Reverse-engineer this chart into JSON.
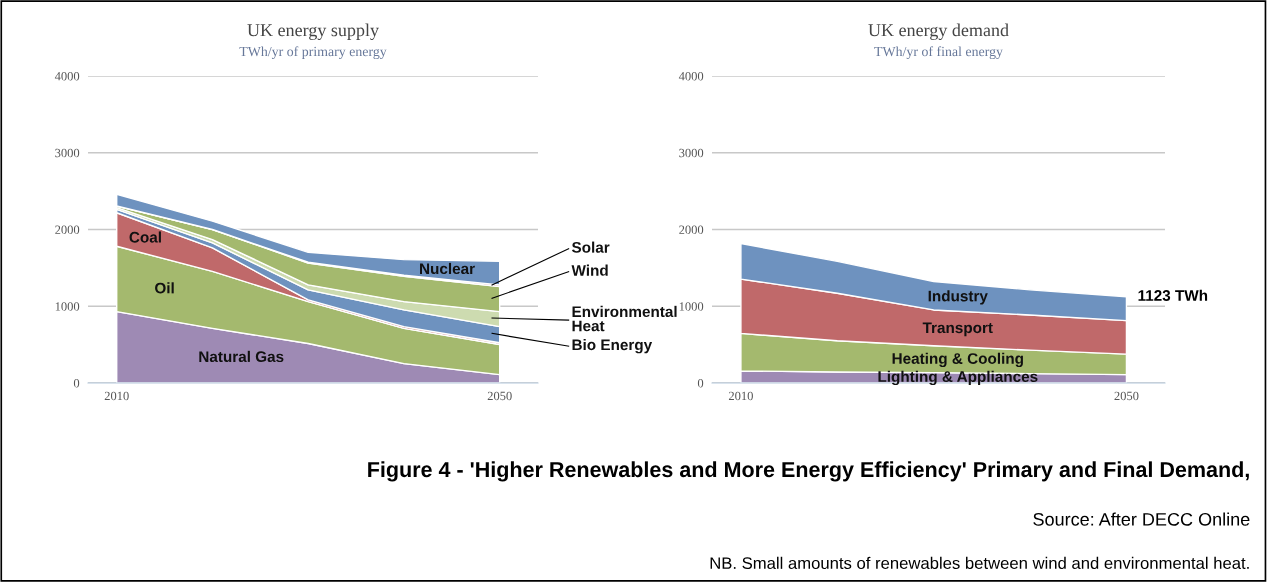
{
  "chart_data": [
    {
      "type": "area",
      "stacked": true,
      "title": "UK energy supply",
      "subtitle": "TWh/yr of primary energy",
      "x": [
        2010,
        2020,
        2030,
        2040,
        2050
      ],
      "xlim": [
        2007,
        2054
      ],
      "xticks": [
        2010,
        2050
      ],
      "ylim": [
        0,
        4000
      ],
      "yticks": [
        0,
        1000,
        2000,
        3000,
        4000
      ],
      "grid": "y",
      "legend": false,
      "series": [
        {
          "name": "Natural Gas",
          "color": "#9e8ab4",
          "values": [
            930,
            712,
            515,
            253,
            109
          ]
        },
        {
          "name": "Oil",
          "color": "#a4b96e",
          "values": [
            852,
            742,
            546,
            459,
            393
          ]
        },
        {
          "name": "Coal",
          "color": "#c0696a",
          "values": [
            436,
            306,
            22,
            22,
            22
          ]
        },
        {
          "name": "Bio Energy",
          "color": "#6e92bf",
          "values": [
            44,
            65,
            131,
            218,
            210
          ]
        },
        {
          "name": "Environmental Heat",
          "color": "#cddbb0",
          "values": [
            22,
            44,
            65,
            109,
            196
          ]
        },
        {
          "name": "Wind",
          "color": "#a4b96e",
          "values": [
            22,
            131,
            284,
            328,
            328
          ]
        },
        {
          "name": "Solar",
          "color": "#c0696a",
          "values": [
            0,
            0,
            10,
            15,
            20
          ]
        },
        {
          "name": "Nuclear",
          "color": "#6e92bf",
          "values": [
            153,
            109,
            130,
            203,
            307
          ]
        }
      ],
      "annotations": [
        "Figure 4 - 'Higher Renewables and More Energy Efficiency' Primary and Final Demand,",
        "Source: After DECC Online",
        "NB. Small amounts of renewables between wind and environmental heat."
      ]
    },
    {
      "type": "area",
      "stacked": true,
      "title": "UK energy demand",
      "subtitle": "TWh/yr of final energy",
      "x": [
        2010,
        2020,
        2030,
        2040,
        2050
      ],
      "xlim": [
        2007,
        2054
      ],
      "xticks": [
        2010,
        2050
      ],
      "ylim": [
        0,
        4000
      ],
      "yticks": [
        0,
        1000,
        2000,
        3000,
        4000
      ],
      "grid": "y",
      "legend": false,
      "series": [
        {
          "name": "Lighting & Appliances",
          "color": "#9e8ab4",
          "values": [
            157,
            144,
            135,
            122,
            109
          ]
        },
        {
          "name": "Heating & Cooling",
          "color": "#a4b96e",
          "values": [
            489,
            406,
            350,
            306,
            267
          ]
        },
        {
          "name": "Transport",
          "color": "#c0696a",
          "values": [
            708,
            620,
            467,
            458,
            436
          ]
        },
        {
          "name": "Industry",
          "color": "#6e92bf",
          "values": [
            463,
            415,
            371,
            328,
            311
          ]
        }
      ],
      "annotations": [
        {
          "text": "1123 TWh",
          "x": 2050,
          "y": 1123
        }
      ]
    }
  ]
}
